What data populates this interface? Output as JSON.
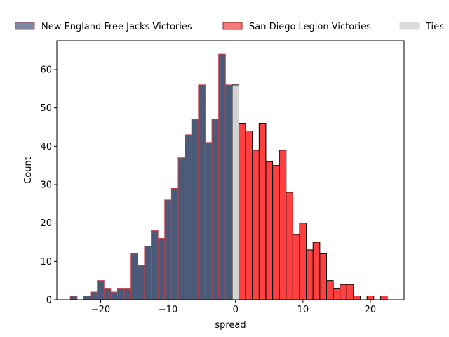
{
  "chart_data": {
    "type": "bar",
    "xlabel": "spread",
    "ylabel": "Count",
    "xlim": [
      -26.5,
      25
    ],
    "ylim": [
      0,
      67.5
    ],
    "x_ticks": [
      -20,
      -10,
      0,
      10,
      20
    ],
    "y_ticks": [
      0,
      10,
      20,
      30,
      40,
      50,
      60
    ],
    "bin_width": 1,
    "legend_position": "top, outside plot",
    "grid": false,
    "series": [
      {
        "name": "New England Free Jacks Victories",
        "color": "#4a5a78",
        "edge_color": "#c0404a",
        "legend_color": "#7f8aa0",
        "legend_edge": "#a05060",
        "bins": [
          {
            "x": -24,
            "count": 1
          },
          {
            "x": -22,
            "count": 1
          },
          {
            "x": -21,
            "count": 2
          },
          {
            "x": -20,
            "count": 5
          },
          {
            "x": -19,
            "count": 3
          },
          {
            "x": -18,
            "count": 2
          },
          {
            "x": -17,
            "count": 3
          },
          {
            "x": -16,
            "count": 3
          },
          {
            "x": -15,
            "count": 12
          },
          {
            "x": -14,
            "count": 9
          },
          {
            "x": -13,
            "count": 14
          },
          {
            "x": -12,
            "count": 18
          },
          {
            "x": -11,
            "count": 16
          },
          {
            "x": -10,
            "count": 26
          },
          {
            "x": -9,
            "count": 29
          },
          {
            "x": -8,
            "count": 37
          },
          {
            "x": -7,
            "count": 43
          },
          {
            "x": -6,
            "count": 47
          },
          {
            "x": -5,
            "count": 56
          },
          {
            "x": -4,
            "count": 41
          },
          {
            "x": -3,
            "count": 47
          },
          {
            "x": -2,
            "count": 64
          },
          {
            "x": -1,
            "count": 56
          }
        ]
      },
      {
        "name": "San Diego Legion Victories",
        "color": "#ff4040",
        "edge_color": "#000000",
        "legend_color": "#f47a7a",
        "legend_edge": "#8a2a2a",
        "bins": [
          {
            "x": 1,
            "count": 46
          },
          {
            "x": 2,
            "count": 44
          },
          {
            "x": 3,
            "count": 39
          },
          {
            "x": 4,
            "count": 46
          },
          {
            "x": 5,
            "count": 36
          },
          {
            "x": 6,
            "count": 35
          },
          {
            "x": 7,
            "count": 39
          },
          {
            "x": 8,
            "count": 28
          },
          {
            "x": 9,
            "count": 17
          },
          {
            "x": 10,
            "count": 20
          },
          {
            "x": 11,
            "count": 13
          },
          {
            "x": 12,
            "count": 15
          },
          {
            "x": 13,
            "count": 12
          },
          {
            "x": 14,
            "count": 5
          },
          {
            "x": 15,
            "count": 3
          },
          {
            "x": 16,
            "count": 4
          },
          {
            "x": 17,
            "count": 4
          },
          {
            "x": 18,
            "count": 1
          },
          {
            "x": 20,
            "count": 1
          },
          {
            "x": 22,
            "count": 1
          }
        ]
      },
      {
        "name": "Ties",
        "color": "#d3d3d3",
        "edge_color": "#000000",
        "legend_color": "#dcdcdc",
        "legend_edge": "#dcdcdc",
        "bins": [
          {
            "x": 0,
            "count": 56
          }
        ]
      }
    ]
  }
}
